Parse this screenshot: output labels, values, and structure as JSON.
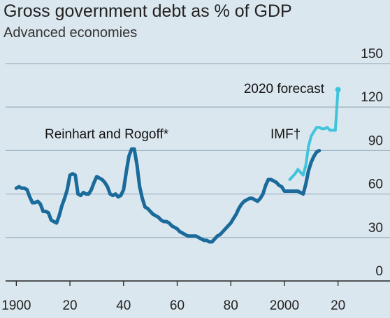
{
  "header": {
    "title": "Gross government debt as % of GDP",
    "subtitle": "Advanced economies"
  },
  "colors": {
    "background": "#dbe7ee",
    "gridline": "#9fb4c1",
    "axis": "#222222",
    "series_rr": "#1b6a9c",
    "series_imf": "#3fc4dc",
    "forecast": "#3fc4dc"
  },
  "chart_data": {
    "type": "line",
    "title": "Gross government debt as % of GDP",
    "subtitle": "Advanced economies",
    "xlabel": "",
    "ylabel": "",
    "xlim": [
      1896,
      2030
    ],
    "ylim": [
      0,
      150
    ],
    "x_ticks": [
      1900,
      1920,
      1940,
      1960,
      1980,
      2000,
      2020
    ],
    "x_tick_labels": [
      "1900",
      "20",
      "40",
      "60",
      "80",
      "2000",
      "20"
    ],
    "y_ticks": [
      0,
      30,
      60,
      90,
      120,
      150
    ],
    "y_tick_labels": [
      "0",
      "30",
      "60",
      "90",
      "120",
      "150"
    ],
    "grid": true,
    "series": [
      {
        "name": "Reinhart and Rogoff*",
        "color": "#1b6a9c",
        "x": [
          1900,
          1901,
          1902,
          1903,
          1904,
          1905,
          1906,
          1907,
          1908,
          1909,
          1910,
          1911,
          1912,
          1913,
          1914,
          1915,
          1916,
          1917,
          1918,
          1919,
          1920,
          1921,
          1922,
          1923,
          1924,
          1925,
          1926,
          1927,
          1928,
          1929,
          1930,
          1931,
          1932,
          1933,
          1934,
          1935,
          1936,
          1937,
          1938,
          1939,
          1940,
          1941,
          1942,
          1943,
          1944,
          1945,
          1946,
          1947,
          1948,
          1949,
          1950,
          1951,
          1952,
          1953,
          1954,
          1955,
          1956,
          1957,
          1958,
          1959,
          1960,
          1961,
          1962,
          1963,
          1964,
          1965,
          1966,
          1967,
          1968,
          1969,
          1970,
          1971,
          1972,
          1973,
          1974,
          1975,
          1976,
          1977,
          1978,
          1979,
          1980,
          1981,
          1982,
          1983,
          1984,
          1985,
          1986,
          1987,
          1988,
          1989,
          1990,
          1991,
          1992,
          1993,
          1994,
          1995,
          1996,
          1997,
          1998,
          1999,
          2000,
          2001,
          2002,
          2003,
          2004,
          2005,
          2006,
          2007,
          2008,
          2009,
          2010,
          2011,
          2012,
          2013
        ],
        "y": [
          64,
          65,
          64,
          64,
          63,
          58,
          54,
          54,
          55,
          53,
          48,
          48,
          47,
          42,
          41,
          40,
          45,
          52,
          57,
          63,
          73,
          74,
          73,
          60,
          59,
          61,
          60,
          60,
          63,
          68,
          72,
          71,
          70,
          68,
          65,
          60,
          59,
          60,
          58,
          59,
          63,
          75,
          86,
          91,
          91,
          80,
          65,
          57,
          51,
          50,
          48,
          46,
          45,
          44,
          42,
          41,
          41,
          40,
          38,
          37,
          36,
          34,
          33,
          32,
          31,
          31,
          31,
          31,
          30,
          29,
          28,
          28,
          27,
          27,
          29,
          31,
          32,
          34,
          36,
          38,
          40,
          43,
          46,
          50,
          53,
          55,
          56,
          57,
          57,
          56,
          55,
          57,
          60,
          66,
          70,
          70,
          69,
          68,
          66,
          65,
          62,
          62,
          62,
          62,
          62,
          62,
          61,
          60,
          67,
          76,
          82,
          86,
          89,
          90
        ]
      },
      {
        "name": "IMF†",
        "color": "#3fc4dc",
        "x": [
          2002,
          2003,
          2004,
          2005,
          2006,
          2007,
          2008,
          2009,
          2010,
          2011,
          2012,
          2013,
          2014,
          2015,
          2016,
          2017,
          2018,
          2019
        ],
        "y": [
          70,
          72,
          74,
          77,
          75,
          73,
          80,
          93,
          100,
          103,
          106,
          106,
          105,
          105,
          106,
          104,
          104,
          104
        ]
      },
      {
        "name": "2020 forecast",
        "color": "#3fc4dc",
        "x": [
          2019,
          2020
        ],
        "y": [
          104,
          132
        ]
      }
    ],
    "annotations": [
      {
        "text": "Reinhart and Rogoff*"
      },
      {
        "text": "IMF†"
      },
      {
        "text": "2020 forecast"
      }
    ]
  }
}
